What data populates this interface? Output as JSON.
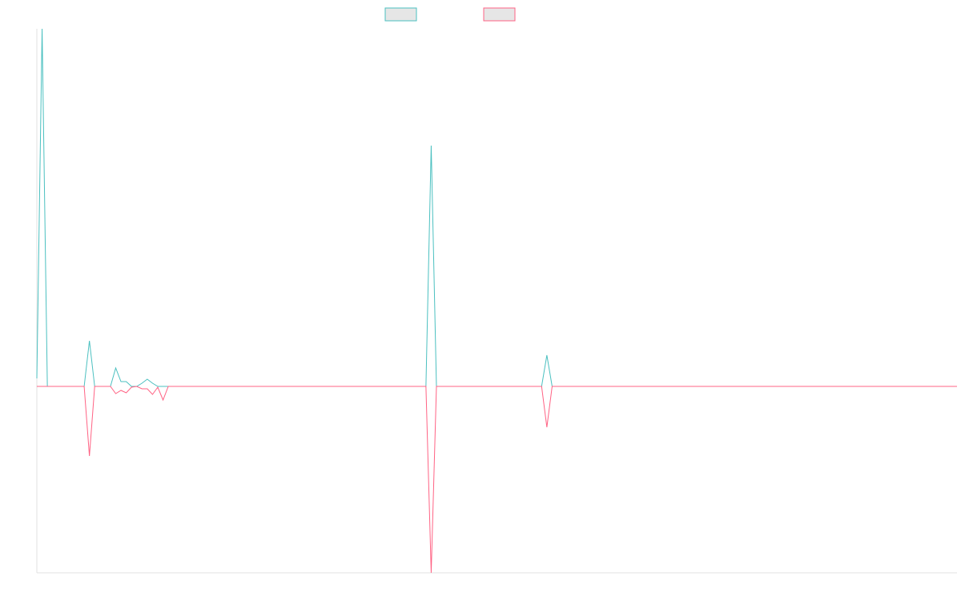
{
  "chart_data": {
    "type": "line",
    "categories": [
      null,
      null,
      null,
      null,
      null,
      null,
      null,
      null,
      null,
      null,
      null,
      null,
      null,
      null,
      null,
      null,
      null,
      null,
      null,
      null,
      null,
      null,
      null,
      null,
      null,
      null,
      null,
      null,
      null,
      null,
      null,
      null,
      null,
      null,
      null,
      null,
      null,
      null,
      null,
      null,
      null,
      null,
      null,
      null,
      null,
      null,
      null,
      null,
      null,
      null,
      null,
      null,
      null,
      null,
      null,
      null,
      null,
      null,
      null,
      null,
      null,
      null,
      null,
      null,
      null,
      null,
      null,
      null,
      null,
      null,
      null,
      null,
      null,
      null,
      null,
      null,
      null,
      null,
      null,
      null,
      null,
      null,
      null,
      null,
      null,
      null,
      null,
      null,
      null,
      null,
      null,
      null,
      null,
      null,
      null,
      null,
      null,
      null,
      null,
      null,
      null,
      null,
      null,
      null,
      null,
      null,
      null,
      null,
      null,
      null,
      null,
      null,
      null,
      null,
      null,
      null,
      null,
      null,
      null,
      null,
      null,
      null,
      null,
      null,
      null,
      null,
      null,
      null,
      null,
      null,
      null,
      null,
      null,
      null,
      null,
      null,
      null,
      null,
      null,
      null,
      null,
      null,
      null,
      null,
      null,
      null,
      null,
      null,
      null,
      null,
      null,
      null,
      null,
      null,
      null,
      null,
      null,
      null,
      null,
      null,
      null,
      null,
      null,
      null,
      null,
      null,
      null,
      null,
      null,
      null,
      null,
      null,
      null,
      null,
      null,
      null
    ],
    "series": [
      {
        "color": "#4bc0c0",
        "values": [
          10,
          447,
          0,
          0,
          0,
          0,
          0,
          0,
          0,
          0,
          57,
          0,
          0,
          0,
          0,
          23,
          6,
          6,
          0,
          0,
          4,
          9,
          4,
          0,
          0,
          0,
          0,
          0,
          0,
          0,
          0,
          0,
          0,
          0,
          0,
          0,
          0,
          0,
          0,
          0,
          0,
          0,
          0,
          0,
          0,
          0,
          0,
          0,
          0,
          0,
          0,
          0,
          0,
          0,
          0,
          0,
          0,
          0,
          0,
          0,
          0,
          0,
          0,
          0,
          0,
          0,
          0,
          0,
          0,
          0,
          0,
          0,
          0,
          0,
          0,
          301,
          0,
          0,
          0,
          0,
          0,
          0,
          0,
          0,
          0,
          0,
          0,
          0,
          0,
          0,
          0,
          0,
          0,
          0,
          0,
          0,
          0,
          39,
          0,
          0,
          0,
          0,
          0,
          0,
          0,
          0,
          0,
          0,
          0,
          0,
          0,
          0,
          0,
          0,
          0,
          0,
          0,
          0,
          0,
          0,
          0,
          0,
          0,
          0,
          0,
          0,
          0,
          0,
          0,
          0,
          0,
          0,
          0,
          0,
          0,
          0,
          0,
          0,
          0,
          0,
          0,
          0,
          0,
          0,
          0,
          0,
          0,
          0,
          0,
          0,
          0,
          0,
          0,
          0,
          0,
          0,
          0,
          0,
          0,
          0,
          0,
          0,
          0,
          0,
          0,
          0,
          0,
          0,
          0,
          0,
          0,
          0,
          0,
          0,
          0,
          0
        ]
      },
      {
        "color": "#ff6384",
        "values": [
          0,
          0,
          0,
          0,
          0,
          0,
          0,
          0,
          0,
          0,
          -87,
          0,
          0,
          0,
          0,
          -9,
          -5,
          -8,
          -1,
          0,
          -3,
          -3,
          -10,
          -1,
          -17,
          0,
          0,
          0,
          0,
          0,
          0,
          0,
          0,
          0,
          0,
          0,
          0,
          0,
          0,
          0,
          0,
          0,
          0,
          0,
          0,
          0,
          0,
          0,
          0,
          0,
          0,
          0,
          0,
          0,
          0,
          0,
          0,
          0,
          0,
          0,
          0,
          0,
          0,
          0,
          0,
          0,
          0,
          0,
          0,
          0,
          0,
          0,
          0,
          0,
          0,
          -233,
          0,
          0,
          0,
          0,
          0,
          0,
          0,
          0,
          0,
          0,
          0,
          0,
          0,
          0,
          0,
          0,
          0,
          0,
          0,
          0,
          0,
          -51,
          0,
          0,
          0,
          0,
          0,
          0,
          0,
          0,
          0,
          0,
          0,
          0,
          0,
          0,
          0,
          0,
          0,
          0,
          0,
          0,
          0,
          0,
          0,
          0,
          0,
          0,
          0,
          0,
          0,
          0,
          0,
          0,
          0,
          0,
          0,
          0,
          0,
          0,
          0,
          0,
          0,
          0,
          0,
          0,
          0,
          0,
          0,
          0,
          0,
          0,
          0,
          0,
          0,
          0,
          0,
          0,
          0,
          0,
          0,
          0,
          0,
          0,
          0,
          0,
          0,
          0,
          0,
          0,
          0,
          0,
          0,
          0,
          0,
          0,
          0,
          0,
          0,
          0
        ]
      }
    ],
    "ylim": [
      -233,
      447
    ]
  }
}
